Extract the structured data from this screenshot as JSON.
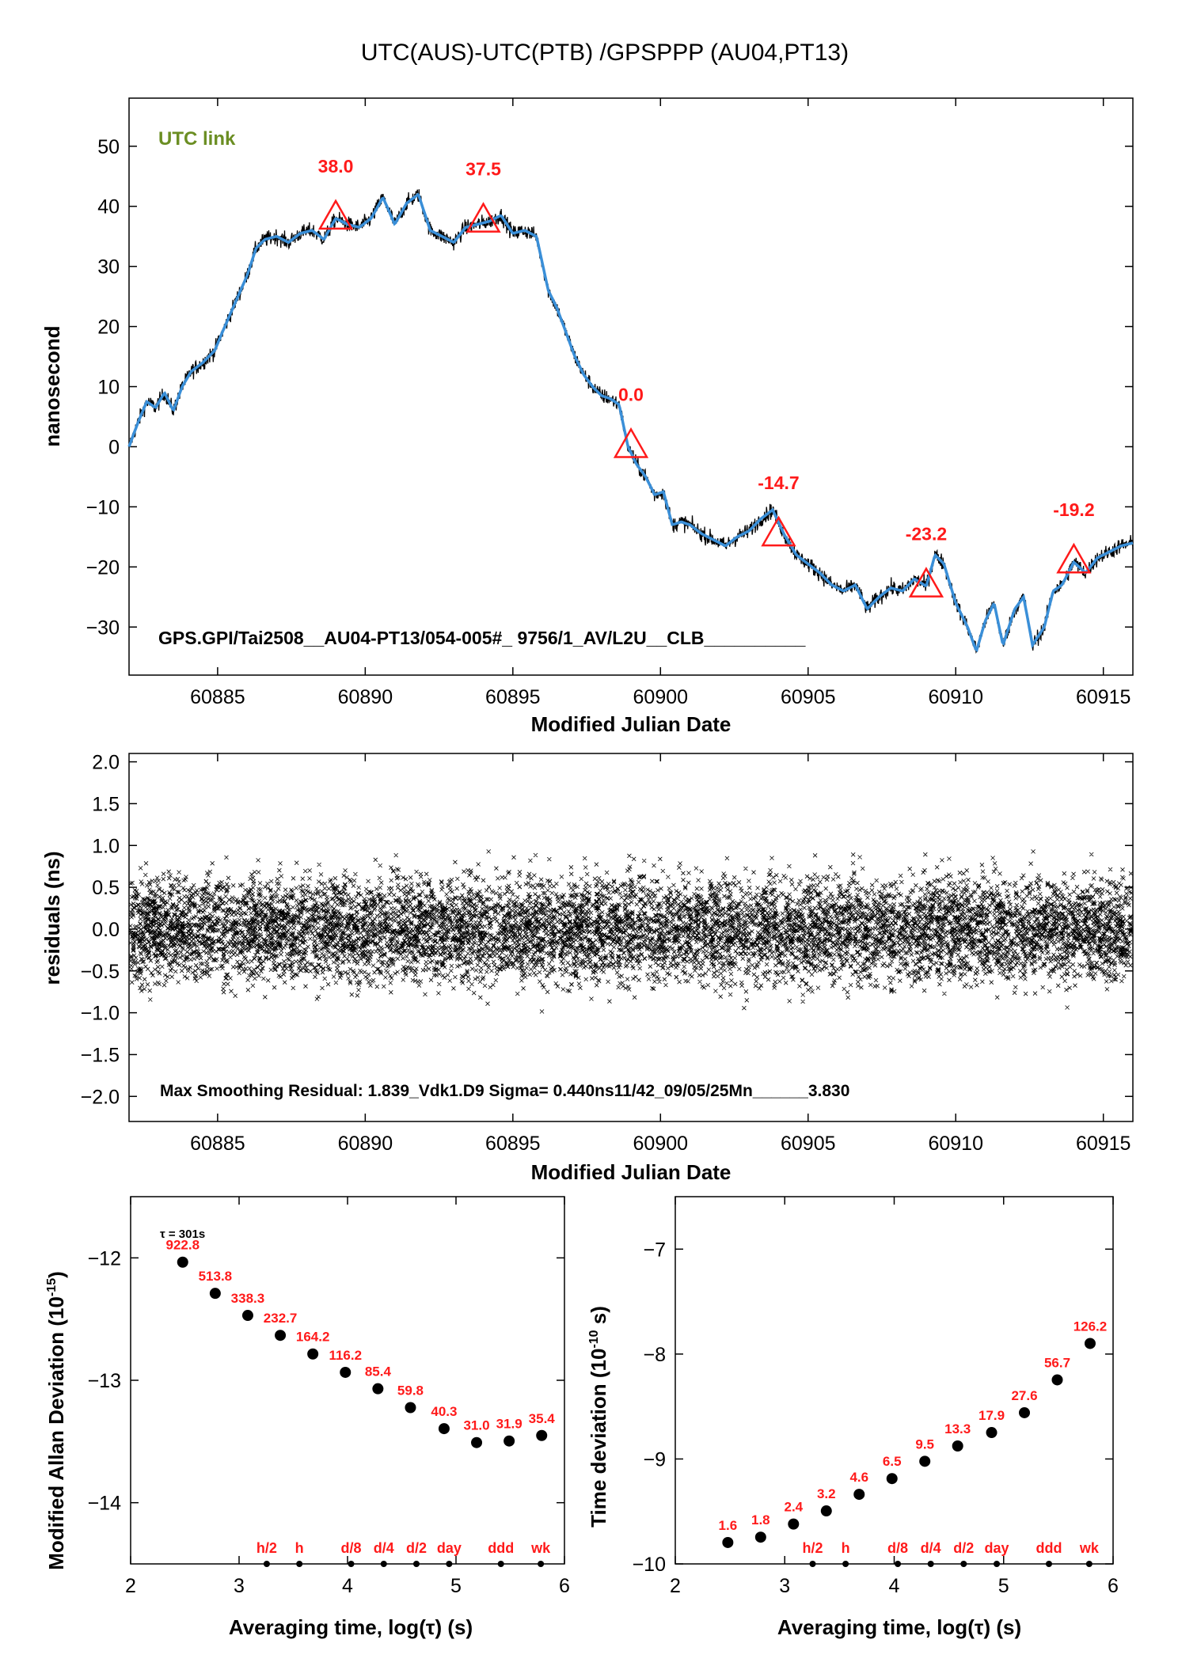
{
  "title": "UTC(AUS)-UTC(PTB)  /GPSPPP  (AU04,PT13)",
  "colors": {
    "raw": "#000000",
    "smooth": "#3a8fd8",
    "marker": "#ff1a1a",
    "label_red": "#ff1a1a",
    "legend_green": "#6b8e23",
    "axis": "#000000"
  },
  "chart_data": [
    {
      "id": "top",
      "type": "line",
      "legend": "UTC link",
      "xlabel": "Modified Julian Date",
      "ylabel": "nanosecond",
      "xlim": [
        60882,
        60916
      ],
      "ylim": [
        -38,
        58
      ],
      "xticks": [
        60885,
        60890,
        60895,
        60900,
        60905,
        60910,
        60915
      ],
      "yticks": [
        -30,
        -20,
        -10,
        0,
        10,
        20,
        30,
        40,
        50
      ],
      "footer": "GPS.GPI/Tai2508__AU04-PT13/054-005#_  9756/1_AV/L2U__CLB__________",
      "series": [
        {
          "x": [
            60882.0,
            60882.3,
            60882.6,
            60882.9,
            60883.2,
            60883.5,
            60883.8,
            60884.1,
            60884.5,
            60884.9,
            60885.2,
            60885.6,
            60886.0,
            60886.3,
            60886.6,
            60887.0,
            60887.4,
            60887.8,
            60888.2,
            60888.6,
            60889.0,
            60889.4,
            60889.8,
            60890.2,
            60890.6,
            60891.0,
            60891.4,
            60891.8,
            60892.2,
            60892.6,
            60893.0,
            60893.4,
            60893.8,
            60894.2,
            60894.6,
            60895.0,
            60895.4,
            60895.8,
            60896.2,
            60896.5,
            60896.8,
            60897.1,
            60897.4,
            60897.7,
            60898.0,
            60898.3,
            60898.6,
            60898.9,
            60899.2,
            60899.5,
            60899.8,
            60900.1,
            60900.4,
            60900.7,
            60901.0,
            60901.4,
            60901.8,
            60902.2,
            60902.6,
            60903.0,
            60903.4,
            60903.8,
            60904.2,
            60904.6,
            60905.0,
            60905.4,
            60905.8,
            60906.2,
            60906.6,
            60907.0,
            60907.4,
            60907.8,
            60908.2,
            60908.6,
            60909.0,
            60909.3,
            60909.6,
            60910.0,
            60910.4,
            60910.7,
            60911.0,
            60911.3,
            60911.6,
            60912.0,
            60912.3,
            60912.6,
            60913.0,
            60913.3,
            60913.6,
            60914.0,
            60914.4,
            60914.8,
            60915.2,
            60915.6,
            60916.0
          ],
          "y": [
            0.0,
            4.0,
            7.5,
            6.5,
            9.0,
            6.0,
            10.0,
            12.5,
            14.0,
            16.0,
            19.5,
            24.0,
            28.5,
            33.0,
            34.5,
            35.0,
            34.0,
            35.5,
            36.0,
            34.5,
            38.0,
            37.0,
            36.5,
            38.0,
            41.5,
            37.0,
            40.5,
            42.0,
            36.0,
            35.0,
            34.0,
            36.5,
            37.0,
            37.5,
            38.5,
            35.5,
            36.0,
            35.0,
            26.0,
            23.0,
            19.0,
            15.0,
            12.0,
            10.0,
            8.5,
            8.0,
            7.0,
            0.0,
            -3.0,
            -5.0,
            -8.0,
            -7.5,
            -13.0,
            -12.5,
            -13.0,
            -14.5,
            -15.5,
            -16.5,
            -15.0,
            -14.0,
            -12.0,
            -10.5,
            -14.7,
            -18.0,
            -19.5,
            -21.0,
            -23.0,
            -24.0,
            -23.0,
            -27.0,
            -25.0,
            -23.5,
            -24.0,
            -22.0,
            -23.2,
            -18.0,
            -19.5,
            -26.0,
            -30.0,
            -34.0,
            -29.0,
            -26.0,
            -33.0,
            -27.0,
            -25.0,
            -33.0,
            -30.0,
            -24.0,
            -23.0,
            -19.2,
            -21.0,
            -18.5,
            -17.5,
            -16.5,
            -16.0
          ]
        }
      ],
      "markers": [
        {
          "x": 60889.0,
          "y": 38.0,
          "label": "38.0"
        },
        {
          "x": 60894.0,
          "y": 37.5,
          "label": "37.5"
        },
        {
          "x": 60899.0,
          "y": 0.0,
          "label": "0.0"
        },
        {
          "x": 60904.0,
          "y": -14.7,
          "label": "-14.7"
        },
        {
          "x": 60909.0,
          "y": -23.2,
          "label": "-23.2"
        },
        {
          "x": 60914.0,
          "y": -19.2,
          "label": "-19.2"
        }
      ]
    },
    {
      "id": "residuals",
      "type": "scatter",
      "xlabel": "Modified Julian Date",
      "ylabel": "residuals (ns)",
      "xlim": [
        60882,
        60916
      ],
      "ylim": [
        -2.3,
        2.1
      ],
      "xticks": [
        60885,
        60890,
        60895,
        60900,
        60905,
        60910,
        60915
      ],
      "yticks": [
        -2.0,
        -1.5,
        -1.0,
        -0.5,
        0.0,
        0.5,
        1.0,
        1.5,
        2.0
      ],
      "sigma_ns": 0.44,
      "max_residual_ns": 1.839,
      "footer": "Max Smoothing Residual: 1.839_Vdk1.D9  Sigma= 0.440ns11/42_09/05/25Mn______3.830"
    },
    {
      "id": "mdev",
      "type": "scatter",
      "xlabel": "Averaging time, log(τ) (s)",
      "ylabel_main": "Modified Allan Deviation (10",
      "ylabel_exp": "-15",
      "ylabel_end": ")",
      "xlim": [
        2,
        6
      ],
      "ylim": [
        -14.5,
        -11.5
      ],
      "xticks": [
        2,
        3,
        4,
        5,
        6
      ],
      "yticks": [
        -14,
        -13,
        -12
      ],
      "tau_note": "τ = 301s",
      "x": [
        2.48,
        2.78,
        3.08,
        3.38,
        3.68,
        3.98,
        4.28,
        4.58,
        4.89,
        5.19,
        5.49,
        5.79
      ],
      "y": [
        -12.035,
        -12.29,
        -12.47,
        -12.633,
        -12.785,
        -12.935,
        -13.069,
        -13.223,
        -13.395,
        -13.509,
        -13.496,
        -13.451
      ],
      "point_labels": [
        "922.8",
        "513.8",
        "338.3",
        "232.7",
        "164.2",
        "116.2",
        "85.4",
        "59.8",
        "40.3",
        "31.0",
        "31.9",
        "35.4"
      ],
      "time_marks": [
        {
          "label": "h/2",
          "x": 3.255
        },
        {
          "label": "h",
          "x": 3.556
        },
        {
          "label": "d/8",
          "x": 4.033
        },
        {
          "label": "d/4",
          "x": 4.334
        },
        {
          "label": "d/2",
          "x": 4.635
        },
        {
          "label": "day",
          "x": 4.937
        },
        {
          "label": "ddd",
          "x": 5.414
        },
        {
          "label": "wk",
          "x": 5.782
        }
      ]
    },
    {
      "id": "tdev",
      "type": "scatter",
      "xlabel": "Averaging time, log(τ) (s)",
      "ylabel_main": "Time deviation (10",
      "ylabel_exp": "-10",
      "ylabel_end": " s)",
      "xlim": [
        2,
        6
      ],
      "ylim": [
        -10.0,
        -6.5
      ],
      "xticks": [
        2,
        3,
        4,
        5,
        6
      ],
      "yticks": [
        -10,
        -9,
        -8,
        -7
      ],
      "x": [
        2.48,
        2.78,
        3.08,
        3.38,
        3.68,
        3.98,
        4.28,
        4.58,
        4.89,
        5.19,
        5.49,
        5.79
      ],
      "y": [
        -9.796,
        -9.745,
        -9.62,
        -9.495,
        -9.337,
        -9.187,
        -9.022,
        -8.876,
        -8.748,
        -8.559,
        -8.246,
        -7.899
      ],
      "point_labels": [
        "1.6",
        "1.8",
        "2.4",
        "3.2",
        "4.6",
        "6.5",
        "9.5",
        "13.3",
        "17.9",
        "27.6",
        "56.7",
        "126.2"
      ],
      "time_marks": [
        {
          "label": "h/2",
          "x": 3.255
        },
        {
          "label": "h",
          "x": 3.556
        },
        {
          "label": "d/8",
          "x": 4.033
        },
        {
          "label": "d/4",
          "x": 4.334
        },
        {
          "label": "d/2",
          "x": 4.635
        },
        {
          "label": "day",
          "x": 4.937
        },
        {
          "label": "ddd",
          "x": 5.414
        },
        {
          "label": "wk",
          "x": 5.782
        }
      ]
    }
  ]
}
